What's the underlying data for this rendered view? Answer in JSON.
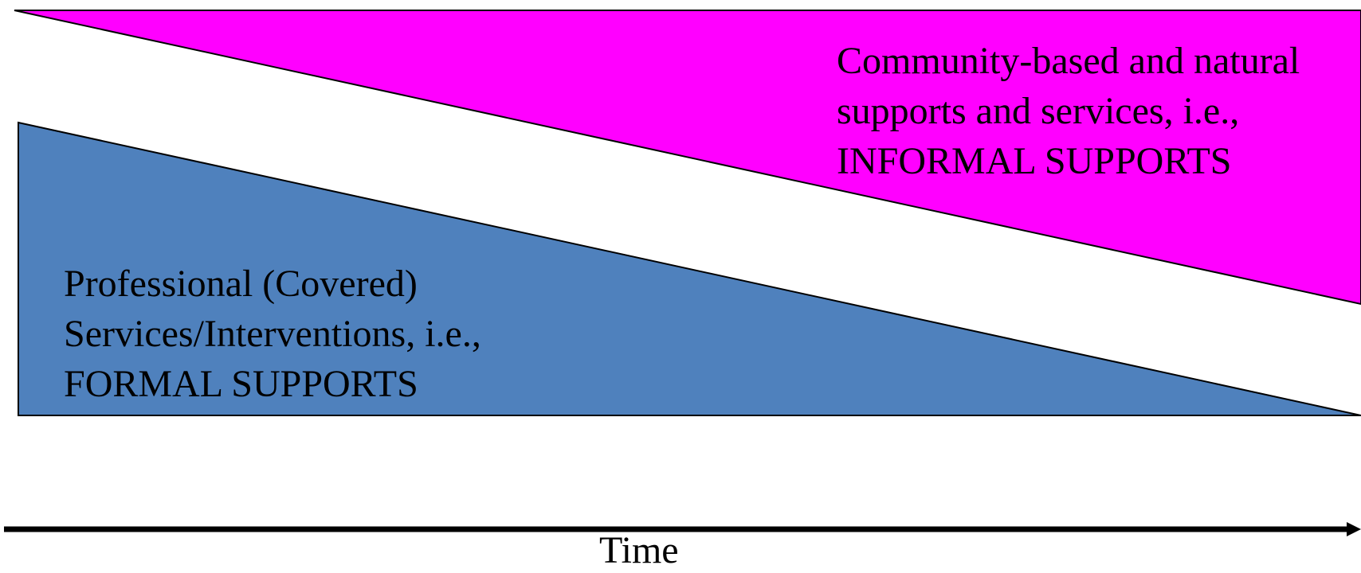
{
  "informal": {
    "lines": [
      "Community-based and natural",
      "supports and services, i.e.,",
      "INFORMAL SUPPORTS"
    ],
    "color": "#ff00ff"
  },
  "formal": {
    "lines": [
      "Professional (Covered)",
      "Services/Interventions, i.e.,",
      "FORMAL SUPPORTS"
    ],
    "color": "#4f81bd"
  },
  "axis": {
    "label": "Time"
  }
}
